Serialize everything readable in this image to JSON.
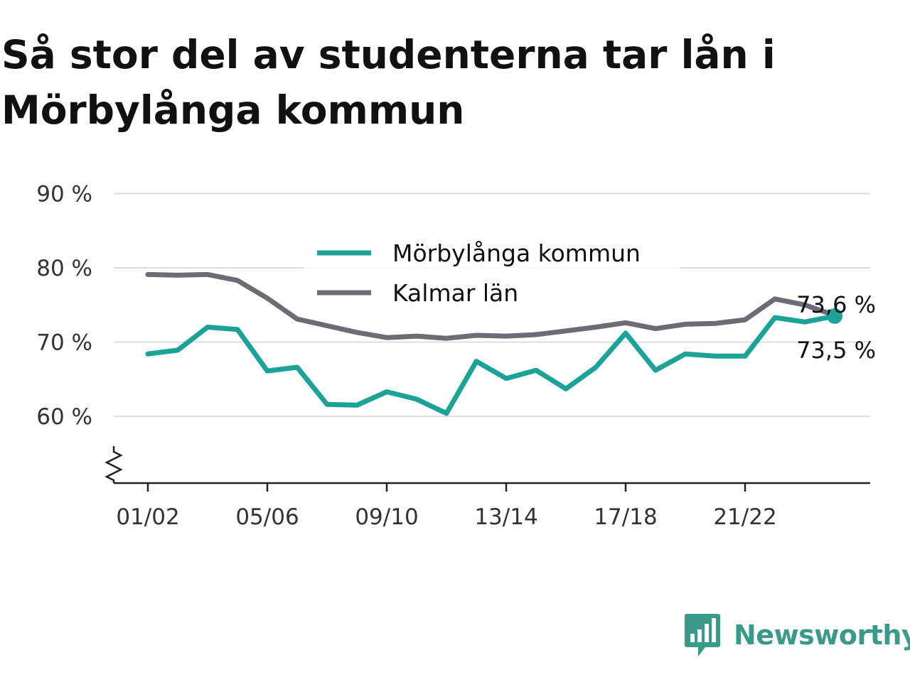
{
  "title": "Så stor del av studenterna tar lån i Mörbylånga kommun",
  "brand": {
    "name": "Newsworthy",
    "color": "#3a9a8a",
    "icon": "chart-speech-bubble-icon"
  },
  "chart_data": {
    "type": "line",
    "title": "Så stor del av studenterna tar lån i Mörbylånga kommun",
    "x": [
      "01/02",
      "02/03",
      "03/04",
      "04/05",
      "05/06",
      "06/07",
      "07/08",
      "08/09",
      "09/10",
      "10/11",
      "11/12",
      "12/13",
      "13/14",
      "14/15",
      "15/16",
      "16/17",
      "17/18",
      "18/19",
      "19/20",
      "20/21",
      "21/22",
      "22/23",
      "23/24",
      "24/25"
    ],
    "xticks": [
      "01/02",
      "05/06",
      "09/10",
      "13/14",
      "17/18",
      "21/22"
    ],
    "yticks": [
      60,
      70,
      80,
      90
    ],
    "ytick_labels": [
      "60 %",
      "70 %",
      "80 %",
      "90 %"
    ],
    "ylim": [
      51,
      91
    ],
    "y_axis_break": true,
    "grid": true,
    "legend_position": "top-center",
    "series": [
      {
        "name": "Mörbylånga kommun",
        "color": "#1aa396",
        "values": [
          68.4,
          68.9,
          72.0,
          71.7,
          66.1,
          66.6,
          61.6,
          61.5,
          63.3,
          62.3,
          60.4,
          67.4,
          65.1,
          66.2,
          63.7,
          66.6,
          71.2,
          66.2,
          68.4,
          68.1,
          68.1,
          73.3,
          72.7,
          73.5
        ],
        "end_label": "73,5 %"
      },
      {
        "name": "Kalmar län",
        "color": "#6d6b73",
        "values": [
          79.1,
          79.0,
          79.1,
          78.3,
          75.9,
          73.1,
          72.2,
          71.3,
          70.6,
          70.8,
          70.5,
          70.9,
          70.8,
          71.0,
          71.5,
          72.0,
          72.6,
          71.8,
          72.4,
          72.5,
          73.0,
          75.8,
          75.0,
          73.6
        ],
        "end_label": "73,6 %"
      }
    ]
  }
}
